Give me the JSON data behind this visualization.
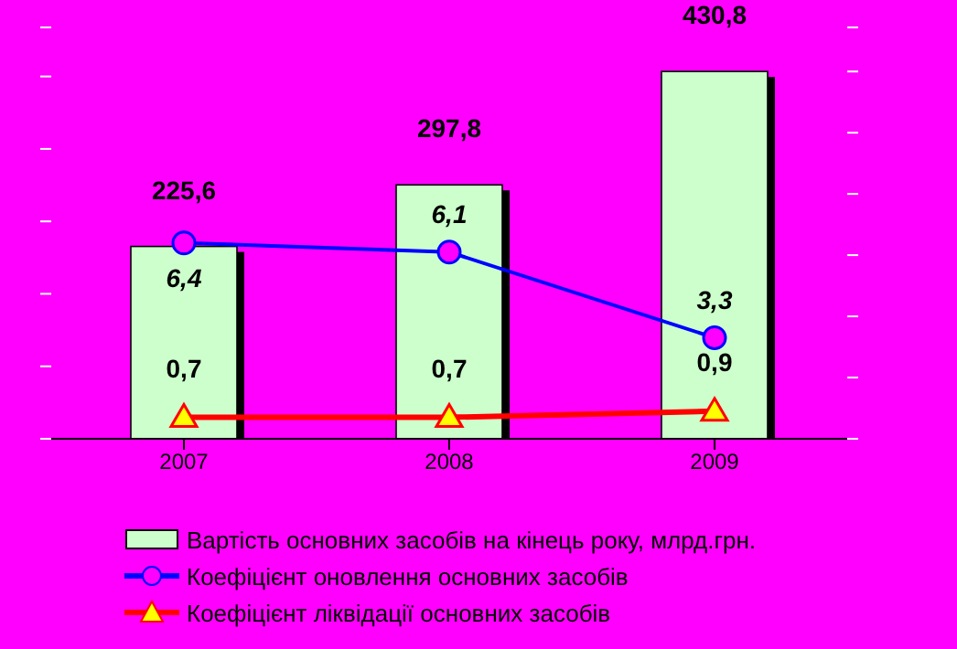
{
  "chart_data": {
    "type": "bar",
    "categories": [
      "2007",
      "2008",
      "2009"
    ],
    "series": [
      {
        "name": "Вартість основних засобів на кінець року, млрд.грн.",
        "color": "#ccffcc",
        "values": [
          225.6,
          297.8,
          430.8
        ],
        "value_labels": [
          "225,6",
          "297,8",
          "430,8"
        ]
      },
      {
        "name": "Коефіцієнт оновлення основних засобів",
        "type": "line",
        "axis": "y2",
        "color": "#0000ff",
        "marker": "circle",
        "values": [
          6.4,
          6.1,
          3.3
        ],
        "value_labels": [
          "6,4",
          "6,1",
          "3,3"
        ]
      },
      {
        "name": "Коефіцієнт ліквідації основних засобів",
        "type": "line",
        "axis": "y2",
        "color": "#ff0000",
        "marker": "triangle",
        "values": [
          0.7,
          0.7,
          0.9
        ],
        "value_labels": [
          "0,7",
          "0,7",
          "0,9"
        ]
      }
    ],
    "tick_labels": "x",
    "legend": "bottom"
  }
}
